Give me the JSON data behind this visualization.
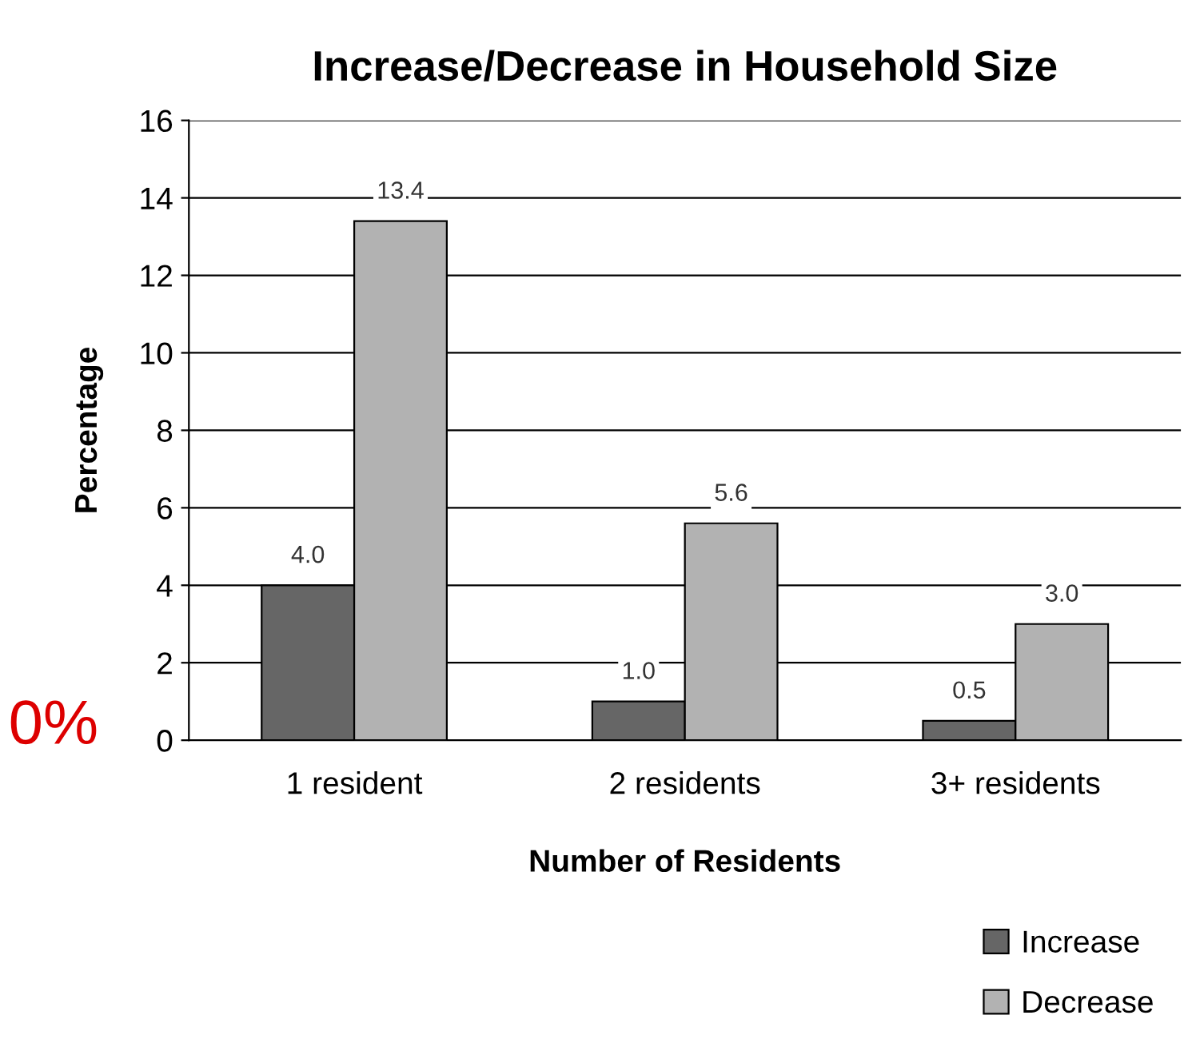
{
  "chart_data": {
    "type": "bar",
    "title": "Increase/Decrease in Household Size",
    "xlabel": "Number of Residents",
    "ylabel": "Percentage",
    "categories": [
      "1 resident",
      "2 residents",
      "3+ residents"
    ],
    "series": [
      {
        "name": "Increase",
        "color": "#666666",
        "values": [
          4.0,
          1.0,
          0.5
        ],
        "value_labels": [
          "4.0",
          "1.0",
          "0.5"
        ]
      },
      {
        "name": "Decrease",
        "color": "#b2b2b2",
        "values": [
          13.4,
          5.6,
          3.0
        ],
        "value_labels": [
          "13.4",
          "5.6",
          "3.0"
        ]
      }
    ],
    "ylim": [
      0,
      16
    ],
    "yticks": [
      0,
      2,
      4,
      6,
      8,
      10,
      12,
      14,
      16
    ],
    "grid": "y",
    "legend": "bottom right",
    "annotations": [
      "0%"
    ]
  }
}
